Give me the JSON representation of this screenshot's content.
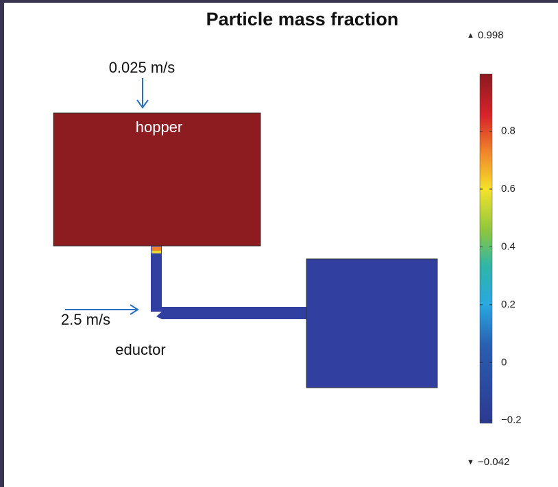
{
  "title": "Particle mass fraction",
  "annotations": {
    "inlet_top": "0.025 m/s",
    "hopper": "hopper",
    "inlet_side": "2.5 m/s",
    "eductor": "eductor"
  },
  "colorbar": {
    "range": [
      -0.21,
      0.998
    ],
    "ticks": [
      {
        "value": 0.8,
        "label": "0.8"
      },
      {
        "value": 0.6,
        "label": "0.6"
      },
      {
        "value": 0.4,
        "label": "0.4"
      },
      {
        "value": 0.2,
        "label": "0.2"
      },
      0,
      {
        "value": -0.2,
        "label": "−0.2"
      }
    ],
    "max": 0.998,
    "min": {
      "value": -0.042,
      "label": "−0.042"
    }
  }
}
